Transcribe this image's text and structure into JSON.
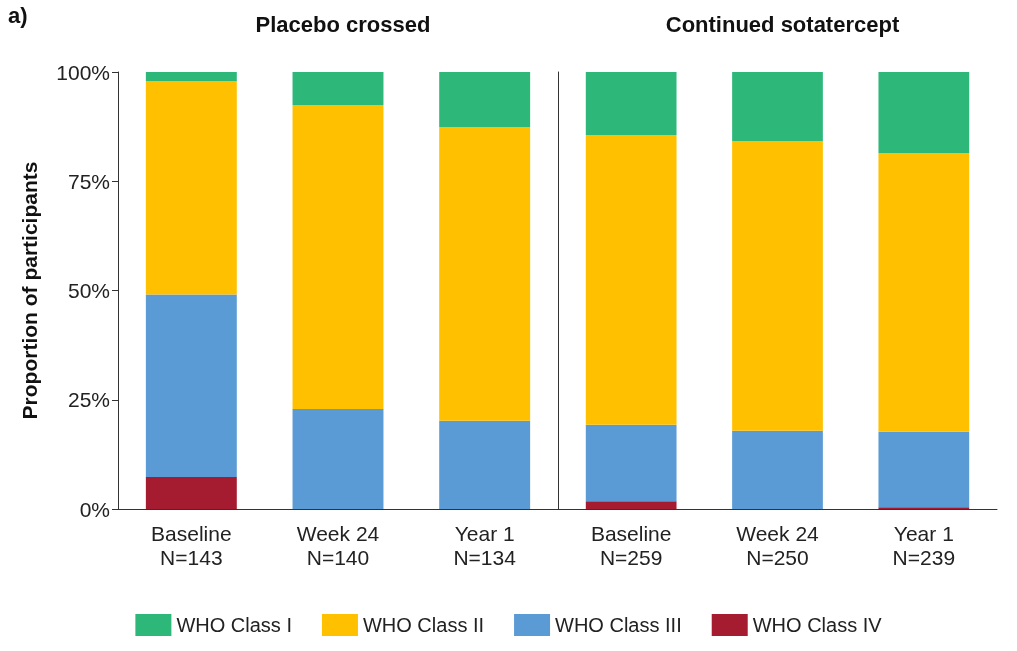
{
  "chart_data": [
    {
      "type": "bar",
      "stacked": true,
      "title": "Placebo crossed",
      "ylabel": "Proportion of participants",
      "categories": [
        "Baseline\nN=143",
        "Week 24\nN=140",
        "Year 1\nN=134"
      ],
      "series": [
        {
          "name": "WHO Class IV",
          "color": "#a51c30",
          "values": [
            7.3,
            0,
            0
          ]
        },
        {
          "name": "WHO Class III",
          "color": "#5b9bd5",
          "values": [
            41.8,
            22.9,
            20.2
          ]
        },
        {
          "name": "WHO Class II",
          "color": "#ffc000",
          "values": [
            48.8,
            69.5,
            67.2
          ]
        },
        {
          "name": "WHO Class I",
          "color": "#2db87a",
          "values": [
            2.1,
            7.6,
            12.6
          ]
        }
      ],
      "ylim": [
        0,
        100
      ],
      "yticks": [
        {
          "value": 0,
          "label": "0%"
        },
        {
          "value": 25,
          "label": "25%"
        },
        {
          "value": 50,
          "label": "50%"
        },
        {
          "value": 75,
          "label": "75%"
        },
        {
          "value": 100,
          "label": "100%"
        }
      ],
      "grid": false,
      "legend": "bottom",
      "annotations": [
        "a)"
      ]
    },
    {
      "type": "bar",
      "stacked": true,
      "title": "Continued sotatercept",
      "categories": [
        "Baseline\nN=259",
        "Week 24\nN=250",
        "Year 1\nN=239"
      ],
      "series": [
        {
          "color": "#a51c30",
          "values": [
            1.8,
            0,
            0.4
          ]
        },
        {
          "color": "#5b9bd5",
          "values": [
            17.5,
            17.9,
            17.3
          ]
        },
        {
          "color": "#ffc000",
          "values": [
            66.3,
            66.3,
            63.7
          ]
        },
        {
          "color": "#2db87a",
          "values": [
            14.4,
            15.8,
            18.6
          ]
        }
      ],
      "ylim": [
        0,
        100
      ],
      "tick_labels": "x",
      "grid": false
    }
  ]
}
